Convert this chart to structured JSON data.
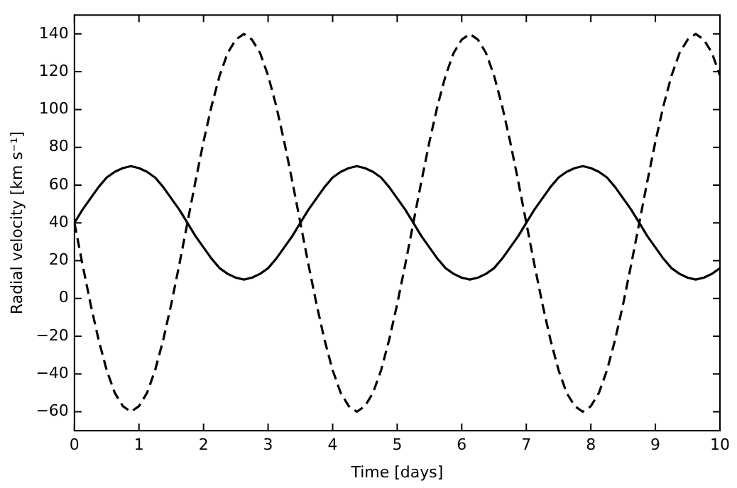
{
  "chart_data": {
    "type": "line",
    "xlabel": "Time [days]",
    "ylabel": "Radial velocity [km s⁻¹]",
    "x": [
      0,
      0.125,
      0.25,
      0.375,
      0.5,
      0.625,
      0.75,
      0.875,
      1,
      1.125,
      1.25,
      1.375,
      1.5,
      1.625,
      1.75,
      1.875,
      2,
      2.125,
      2.25,
      2.375,
      2.5,
      2.625,
      2.75,
      2.875,
      3,
      3.125,
      3.25,
      3.375,
      3.5,
      3.625,
      3.75,
      3.875,
      4,
      4.125,
      4.25,
      4.375,
      4.5,
      4.625,
      4.75,
      4.875,
      5,
      5.125,
      5.25,
      5.375,
      5.5,
      5.625,
      5.75,
      5.875,
      6,
      6.125,
      6.25,
      6.375,
      6.5,
      6.625,
      6.75,
      6.875,
      7,
      7.125,
      7.25,
      7.375,
      7.5,
      7.625,
      7.75,
      7.875,
      8,
      8.125,
      8.25,
      8.375,
      8.5,
      8.625,
      8.75,
      8.875,
      9,
      9.125,
      9.25,
      9.375,
      9.5,
      9.625,
      9.75,
      9.875,
      10
    ],
    "series": [
      {
        "color": "#000000",
        "line_style": "solid",
        "values": [
          40,
          47,
          53,
          59,
          64,
          67,
          69,
          70,
          69,
          67,
          64,
          59,
          53,
          47,
          40,
          33,
          27,
          21,
          16,
          13,
          11,
          10,
          11,
          13,
          16,
          21,
          27,
          33,
          40,
          47,
          53,
          59,
          64,
          67,
          69,
          70,
          69,
          67,
          64,
          59,
          53,
          47,
          40,
          33,
          27,
          21,
          16,
          13,
          11,
          10,
          11,
          13,
          16,
          21,
          27,
          33,
          40,
          47,
          53,
          59,
          64,
          67,
          69,
          70,
          69,
          67,
          64,
          59,
          53,
          47,
          40,
          33,
          27,
          21,
          16,
          13,
          11,
          10,
          11,
          13,
          16
        ]
      },
      {
        "color": "#000000",
        "line_style": "dashed",
        "values": [
          40,
          18,
          -3,
          -22,
          -38,
          -50,
          -57,
          -60,
          -57,
          -50,
          -38,
          -22,
          -3,
          18,
          40,
          62,
          83,
          102,
          118,
          130,
          137,
          140,
          137,
          130,
          118,
          102,
          83,
          62,
          40,
          18,
          -3,
          -22,
          -38,
          -50,
          -57,
          -60,
          -57,
          -50,
          -38,
          -22,
          -3,
          18,
          40,
          62,
          83,
          102,
          118,
          130,
          137,
          140,
          137,
          130,
          118,
          102,
          83,
          62,
          40,
          18,
          -3,
          -22,
          -38,
          -50,
          -57,
          -60,
          -57,
          -50,
          -38,
          -22,
          -3,
          18,
          40,
          62,
          83,
          102,
          118,
          130,
          137,
          140,
          137,
          130,
          118
        ]
      }
    ],
    "xlim": [
      0,
      10
    ],
    "xticks": [
      0,
      1,
      2,
      3,
      4,
      5,
      6,
      7,
      8,
      9,
      10
    ],
    "ylim": [
      -70,
      150
    ],
    "yticks": [
      -60,
      -40,
      -20,
      0,
      20,
      40,
      60,
      80,
      100,
      120,
      140
    ],
    "grid": false,
    "legend": false,
    "marker": "none"
  }
}
